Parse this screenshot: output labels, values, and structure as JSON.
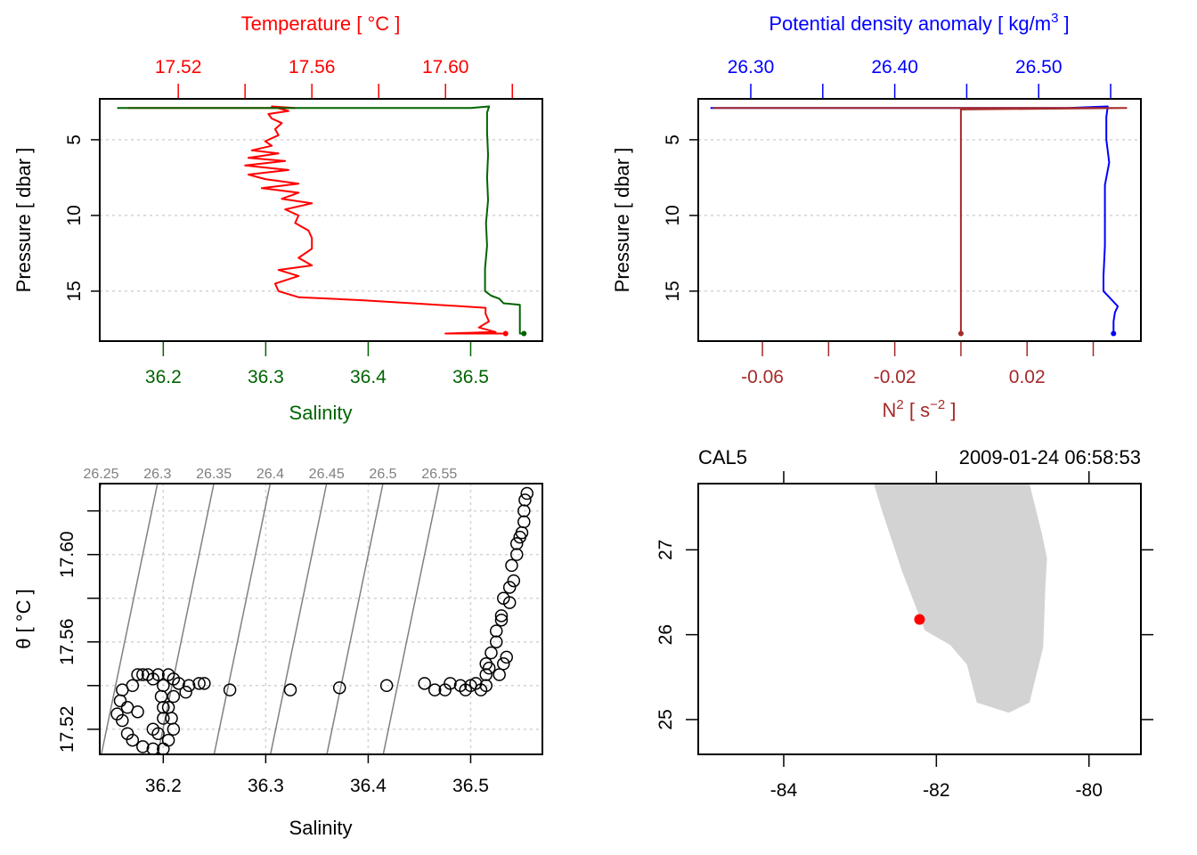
{
  "chart_data": [
    {
      "id": "profile_TS",
      "type": "line",
      "top_axis": {
        "label": "Temperature [ °C ]",
        "color": "#ff0000",
        "ticks": [
          17.52,
          17.56,
          17.6
        ],
        "minor_ticks": [
          17.54,
          17.58,
          17.62
        ],
        "range": [
          17.4965,
          17.629
        ]
      },
      "bottom_axis": {
        "label": "Salinity",
        "color": "#006400",
        "ticks": [
          36.2,
          36.3,
          36.4,
          36.5
        ],
        "range": [
          36.138,
          36.57
        ]
      },
      "y_axis": {
        "label": "Pressure [ dbar ]",
        "ticks": [
          5,
          10,
          15
        ],
        "range": [
          18.3,
          2.3
        ],
        "reversed": true
      },
      "grid": "horizontal-dotted",
      "series": [
        {
          "name": "Temperature",
          "color": "#ff0000",
          "axis": "top",
          "points": [
            [
              17.505,
              2.9
            ],
            [
              17.555,
              2.9
            ],
            [
              17.548,
              2.8
            ],
            [
              17.553,
              3.1
            ],
            [
              17.547,
              3.3
            ],
            [
              17.548,
              3.6
            ],
            [
              17.551,
              3.9
            ],
            [
              17.549,
              4.3
            ],
            [
              17.55,
              4.7
            ],
            [
              17.546,
              5.1
            ],
            [
              17.548,
              5.4
            ],
            [
              17.542,
              5.7
            ],
            [
              17.55,
              5.9
            ],
            [
              17.541,
              6.2
            ],
            [
              17.552,
              6.4
            ],
            [
              17.54,
              6.7
            ],
            [
              17.553,
              7.0
            ],
            [
              17.541,
              7.3
            ],
            [
              17.546,
              7.6
            ],
            [
              17.556,
              7.9
            ],
            [
              17.545,
              8.2
            ],
            [
              17.556,
              8.5
            ],
            [
              17.551,
              8.9
            ],
            [
              17.56,
              9.2
            ],
            [
              17.552,
              9.6
            ],
            [
              17.556,
              10.0
            ],
            [
              17.555,
              10.5
            ],
            [
              17.559,
              11.0
            ],
            [
              17.56,
              11.5
            ],
            [
              17.56,
              12.2
            ],
            [
              17.556,
              12.8
            ],
            [
              17.56,
              13.3
            ],
            [
              17.55,
              13.6
            ],
            [
              17.556,
              14.0
            ],
            [
              17.549,
              14.5
            ],
            [
              17.55,
              15.0
            ],
            [
              17.556,
              15.4
            ],
            [
              17.575,
              15.6
            ],
            [
              17.59,
              15.8
            ],
            [
              17.612,
              16.1
            ],
            [
              17.612,
              16.5
            ],
            [
              17.613,
              17.0
            ],
            [
              17.61,
              17.4
            ],
            [
              17.615,
              17.7
            ],
            [
              17.6,
              17.8
            ],
            [
              17.618,
              17.8
            ]
          ]
        },
        {
          "name": "Salinity",
          "color": "#006400",
          "axis": "bottom",
          "points": [
            [
              36.155,
              2.9
            ],
            [
              36.5,
              2.9
            ],
            [
              36.518,
              2.8
            ],
            [
              36.516,
              3.2
            ],
            [
              36.516,
              4.5
            ],
            [
              36.517,
              6.0
            ],
            [
              36.516,
              7.5
            ],
            [
              36.517,
              9.0
            ],
            [
              36.515,
              10.5
            ],
            [
              36.516,
              12.0
            ],
            [
              36.514,
              13.5
            ],
            [
              36.514,
              15.0
            ],
            [
              36.52,
              15.3
            ],
            [
              36.528,
              15.5
            ],
            [
              36.532,
              15.8
            ],
            [
              36.548,
              15.9
            ],
            [
              36.548,
              17.0
            ],
            [
              36.548,
              17.8
            ],
            [
              36.552,
              17.8
            ]
          ]
        }
      ]
    },
    {
      "id": "profile_density_N2",
      "type": "line",
      "top_axis": {
        "label": "Potential density anomaly [ kg/m3 ]",
        "color": "#0000ff",
        "ticks": [
          26.3,
          26.4,
          26.5
        ],
        "minor_ticks": [
          26.35,
          26.45,
          26.55
        ],
        "range": [
          26.2635,
          26.571
        ]
      },
      "bottom_axis": {
        "label": "N2 [ s-2 ]",
        "color": "#a52a2a",
        "ticks": [
          -0.06,
          -0.02,
          0.02
        ],
        "minor_ticks": [
          -0.04,
          0.0,
          0.04
        ],
        "range": [
          -0.0794,
          0.0544
        ]
      },
      "y_axis": {
        "label": "Pressure [ dbar ]",
        "ticks": [
          5,
          10,
          15
        ],
        "range": [
          18.3,
          2.3
        ],
        "reversed": true
      },
      "grid": "horizontal-dotted",
      "series": [
        {
          "name": "Potential density anomaly",
          "color": "#0000ff",
          "axis": "top",
          "points": [
            [
              26.272,
              2.9
            ],
            [
              26.52,
              2.9
            ],
            [
              26.548,
              2.8
            ],
            [
              26.547,
              3.5
            ],
            [
              26.547,
              5.0
            ],
            [
              26.549,
              6.5
            ],
            [
              26.546,
              8.0
            ],
            [
              26.546,
              10.0
            ],
            [
              26.546,
              12.0
            ],
            [
              26.545,
              14.0
            ],
            [
              26.545,
              15.0
            ],
            [
              26.55,
              15.5
            ],
            [
              26.555,
              16.0
            ],
            [
              26.553,
              16.4
            ],
            [
              26.552,
              17.0
            ],
            [
              26.552,
              17.8
            ]
          ]
        },
        {
          "name": "N2",
          "color": "#a52a2a",
          "axis": "bottom",
          "points": [
            [
              -0.075,
              2.9
            ],
            [
              0.05,
              2.9
            ],
            [
              0.0,
              3.0
            ],
            [
              0.0,
              3.7
            ],
            [
              0.0,
              10.0
            ],
            [
              0.0,
              17.8
            ]
          ]
        }
      ]
    },
    {
      "id": "TS_diagram",
      "type": "scatter",
      "x_axis": {
        "label": "Salinity",
        "ticks": [
          36.2,
          36.3,
          36.4,
          36.5
        ],
        "range": [
          36.138,
          36.57
        ]
      },
      "y_axis": {
        "label": "θ [ °C ]",
        "ticks": [
          17.52,
          17.56,
          17.6
        ],
        "minor_ticks": [
          17.54,
          17.58,
          17.62
        ],
        "range": [
          17.5085,
          17.6325
        ]
      },
      "grid": "dotted",
      "isopycnals": {
        "color": "#808080",
        "labels": [
          "26.25",
          "26.3",
          "26.35",
          "26.4",
          "26.45",
          "26.5",
          "26.55"
        ],
        "values": [
          26.25,
          26.3,
          26.35,
          26.4,
          26.45,
          26.5,
          26.55
        ]
      },
      "points_summary": [
        [
          36.155,
          17.527
        ],
        [
          36.16,
          17.524
        ],
        [
          36.165,
          17.518
        ],
        [
          36.17,
          17.515
        ],
        [
          36.18,
          17.512
        ],
        [
          36.19,
          17.511
        ],
        [
          36.2,
          17.511
        ],
        [
          36.205,
          17.515
        ],
        [
          36.21,
          17.52
        ],
        [
          36.208,
          17.525
        ],
        [
          36.205,
          17.53
        ],
        [
          36.21,
          17.535
        ],
        [
          36.2,
          17.54
        ],
        [
          36.19,
          17.543
        ],
        [
          36.18,
          17.545
        ],
        [
          36.175,
          17.545
        ],
        [
          36.185,
          17.545
        ],
        [
          36.195,
          17.545
        ],
        [
          36.205,
          17.545
        ],
        [
          36.21,
          17.543
        ],
        [
          36.215,
          17.541
        ],
        [
          36.225,
          17.54
        ],
        [
          36.235,
          17.541
        ],
        [
          36.24,
          17.541
        ],
        [
          36.17,
          17.54
        ],
        [
          36.16,
          17.538
        ],
        [
          36.158,
          17.533
        ],
        [
          36.165,
          17.53
        ],
        [
          36.175,
          17.528
        ],
        [
          36.19,
          17.52
        ],
        [
          36.195,
          17.518
        ],
        [
          36.2,
          17.525
        ],
        [
          36.2,
          17.53
        ],
        [
          36.198,
          17.535
        ],
        [
          36.222,
          17.537
        ],
        [
          36.265,
          17.538
        ],
        [
          36.324,
          17.538
        ],
        [
          36.372,
          17.539
        ],
        [
          36.418,
          17.54
        ],
        [
          36.455,
          17.541
        ],
        [
          36.465,
          17.538
        ],
        [
          36.475,
          17.538
        ],
        [
          36.48,
          17.541
        ],
        [
          36.49,
          17.54
        ],
        [
          36.495,
          17.538
        ],
        [
          36.5,
          17.54
        ],
        [
          36.505,
          17.541
        ],
        [
          36.51,
          17.538
        ],
        [
          36.515,
          17.54
        ],
        [
          36.515,
          17.545
        ],
        [
          36.515,
          17.55
        ],
        [
          36.518,
          17.548
        ],
        [
          36.52,
          17.555
        ],
        [
          36.525,
          17.56
        ],
        [
          36.525,
          17.565
        ],
        [
          36.53,
          17.57
        ],
        [
          36.532,
          17.58
        ],
        [
          36.538,
          17.585
        ],
        [
          36.54,
          17.595
        ],
        [
          36.545,
          17.6
        ],
        [
          36.545,
          17.605
        ],
        [
          36.55,
          17.61
        ],
        [
          36.552,
          17.615
        ],
        [
          36.552,
          17.62
        ],
        [
          36.553,
          17.625
        ],
        [
          36.555,
          17.628
        ],
        [
          36.53,
          17.572
        ],
        [
          36.535,
          17.553
        ],
        [
          36.532,
          17.55
        ],
        [
          36.528,
          17.545
        ],
        [
          36.538,
          17.578
        ],
        [
          36.542,
          17.588
        ],
        [
          36.548,
          17.608
        ]
      ]
    },
    {
      "id": "station_map",
      "type": "scatter",
      "title_left": "CAL5",
      "title_right": "2009-01-24 06:58:53",
      "x_axis": {
        "label": "",
        "ticks": [
          -84,
          -82,
          -80
        ],
        "range": [
          -85.12,
          -79.32
        ]
      },
      "y_axis": {
        "label": "",
        "ticks": [
          25,
          26,
          27
        ],
        "range": [
          24.59,
          27.78
        ]
      },
      "coastline": {
        "fill": "#d3d3d3",
        "polygon": [
          [
            -82.82,
            27.78
          ],
          [
            -82.72,
            27.48
          ],
          [
            -82.45,
            26.75
          ],
          [
            -82.15,
            26.05
          ],
          [
            -81.82,
            25.88
          ],
          [
            -81.6,
            25.65
          ],
          [
            -81.47,
            25.2
          ],
          [
            -81.05,
            25.08
          ],
          [
            -80.78,
            25.2
          ],
          [
            -80.6,
            25.85
          ],
          [
            -80.57,
            26.6
          ],
          [
            -80.55,
            26.9
          ],
          [
            -80.62,
            27.2
          ],
          [
            -80.78,
            27.78
          ]
        ]
      },
      "station": {
        "lon": -82.22,
        "lat": 26.18,
        "color": "#ff0000"
      }
    }
  ]
}
